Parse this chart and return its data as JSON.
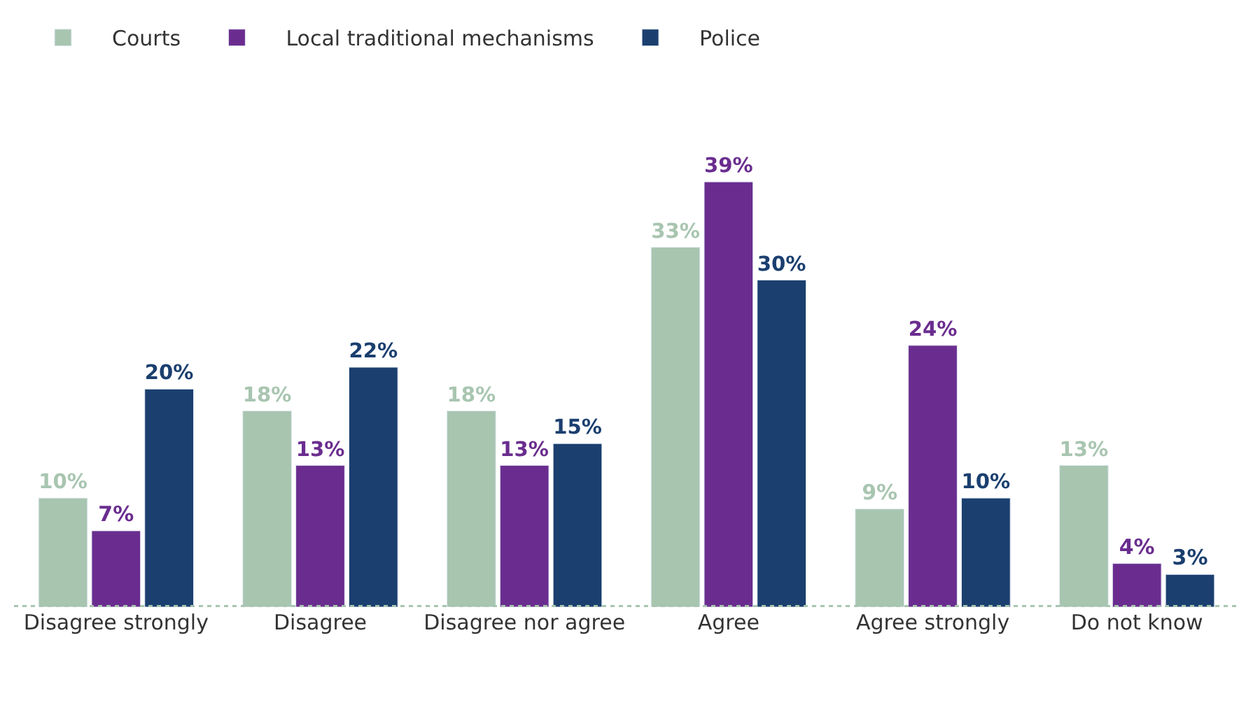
{
  "chart_data": {
    "type": "bar",
    "categories": [
      "Disagree strongly",
      "Disagree",
      "Disagree nor agree",
      "Agree",
      "Agree strongly",
      "Do not know"
    ],
    "series": [
      {
        "name": "Courts",
        "color": "#a8c5b0",
        "values": [
          10,
          18,
          18,
          33,
          9,
          13
        ],
        "value_labels": [
          "10%",
          "18%",
          "18%",
          "33%",
          "9%",
          "13%"
        ]
      },
      {
        "name": "Local traditional mechanisms",
        "color": "#6a2d8f",
        "values": [
          7,
          13,
          13,
          39,
          24,
          4
        ],
        "value_labels": [
          "7%",
          "13%",
          "13%",
          "39%",
          "24%",
          "4%"
        ]
      },
      {
        "name": "Police",
        "color": "#1b3f6f",
        "values": [
          20,
          22,
          15,
          30,
          10,
          3
        ],
        "value_labels": [
          "20%",
          "22%",
          "15%",
          "30%",
          "10%",
          "3%"
        ]
      }
    ],
    "legend": "top left"
  }
}
